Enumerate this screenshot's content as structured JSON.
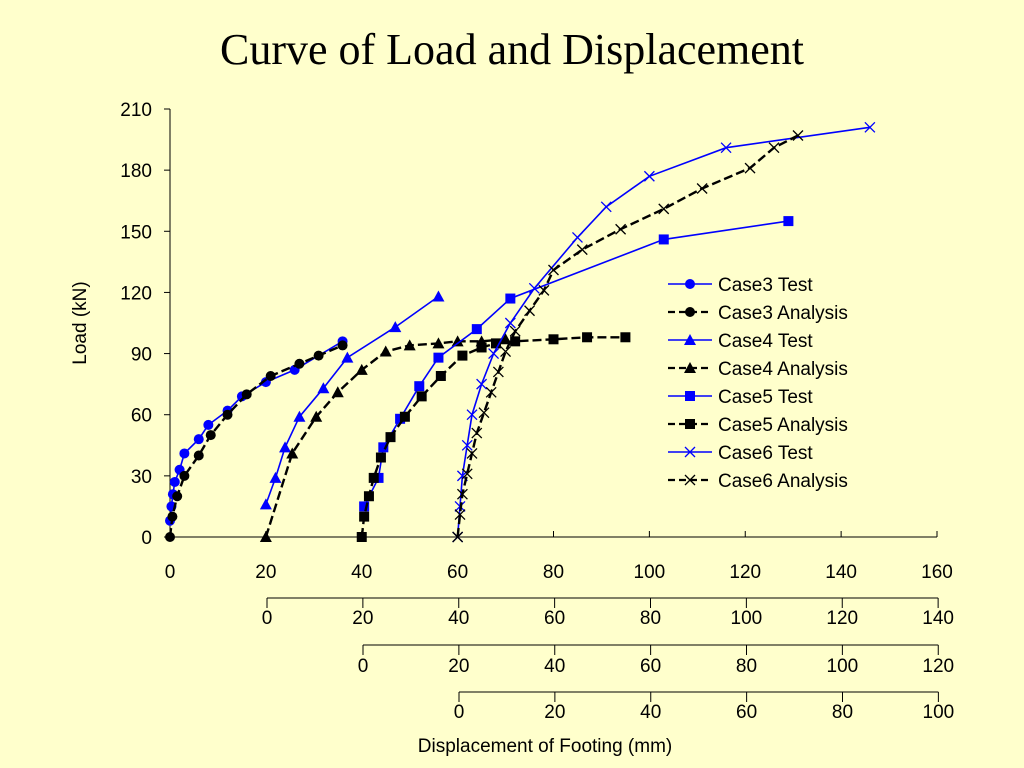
{
  "title": "Curve of Load and Displacement",
  "chart_data": {
    "type": "line",
    "title": "Curve of Load and Displacement",
    "ylabel": "Load (kN)",
    "xlabel": "Displacement of Footing (mm)",
    "ylim": [
      0,
      210
    ],
    "yticks": [
      0,
      30,
      60,
      90,
      120,
      150,
      180,
      210
    ],
    "xlim": [
      0,
      160
    ],
    "x_axes": [
      {
        "ticks": [
          0,
          20,
          40,
          60,
          80,
          100,
          120,
          140,
          160
        ]
      },
      {
        "ticks": [
          0,
          20,
          40,
          60,
          80,
          100,
          120,
          140
        ]
      },
      {
        "ticks": [
          0,
          20,
          40,
          60,
          80,
          100,
          120
        ]
      },
      {
        "ticks": [
          0,
          20,
          40,
          60,
          80,
          100
        ]
      }
    ],
    "grid": false,
    "legend_position": "right",
    "series": [
      {
        "name": "Case3 Test",
        "color": "#0000FF",
        "dash": false,
        "marker": "circle",
        "points": [
          [
            0,
            8
          ],
          [
            0.3,
            15
          ],
          [
            0.6,
            21
          ],
          [
            1,
            27
          ],
          [
            2,
            33
          ],
          [
            3,
            41
          ],
          [
            6,
            48
          ],
          [
            8,
            55
          ],
          [
            12,
            62
          ],
          [
            15,
            69
          ],
          [
            20,
            76
          ],
          [
            26,
            82
          ],
          [
            36,
            96
          ]
        ]
      },
      {
        "name": "Case3 Analysis",
        "color": "#000000",
        "dash": true,
        "marker": "circle",
        "points": [
          [
            0,
            0
          ],
          [
            0.5,
            10
          ],
          [
            1.5,
            20
          ],
          [
            3,
            30
          ],
          [
            6,
            40
          ],
          [
            8.5,
            50
          ],
          [
            12,
            60
          ],
          [
            16,
            70
          ],
          [
            21,
            79
          ],
          [
            27,
            85
          ],
          [
            31,
            89
          ],
          [
            36,
            94
          ]
        ]
      },
      {
        "name": "Case4 Test",
        "color": "#0000FF",
        "dash": false,
        "marker": "triangle",
        "points": [
          [
            20,
            16
          ],
          [
            22,
            29
          ],
          [
            24,
            44
          ],
          [
            27,
            59
          ],
          [
            32,
            73
          ],
          [
            37,
            88
          ],
          [
            47,
            103
          ],
          [
            56,
            118
          ]
        ]
      },
      {
        "name": "Case4 Analysis",
        "color": "#000000",
        "dash": true,
        "marker": "triangle",
        "points": [
          [
            20,
            0
          ],
          [
            25.5,
            41
          ],
          [
            30.5,
            59
          ],
          [
            35,
            71
          ],
          [
            40,
            82
          ],
          [
            45,
            91
          ],
          [
            50,
            94
          ],
          [
            56,
            95
          ],
          [
            60,
            96
          ],
          [
            65,
            96
          ],
          [
            70,
            97
          ]
        ]
      },
      {
        "name": "Case5 Test",
        "color": "#0000FF",
        "dash": false,
        "marker": "square",
        "points": [
          [
            40.5,
            15
          ],
          [
            43.5,
            29
          ],
          [
            44.5,
            44
          ],
          [
            48,
            58
          ],
          [
            52,
            74
          ],
          [
            56,
            88
          ],
          [
            64,
            102
          ],
          [
            71,
            117
          ],
          [
            103,
            146
          ],
          [
            129,
            155
          ]
        ]
      },
      {
        "name": "Case5 Analysis",
        "color": "#000000",
        "dash": true,
        "marker": "square",
        "points": [
          [
            40,
            0
          ],
          [
            40.5,
            10
          ],
          [
            41.5,
            20
          ],
          [
            42.5,
            29
          ],
          [
            44,
            39
          ],
          [
            46,
            49
          ],
          [
            49,
            59
          ],
          [
            52.5,
            69
          ],
          [
            56.5,
            79
          ],
          [
            61,
            89
          ],
          [
            65,
            93
          ],
          [
            68,
            95
          ],
          [
            72,
            96
          ],
          [
            80,
            97
          ],
          [
            87,
            98
          ],
          [
            95,
            98
          ]
        ]
      },
      {
        "name": "Case6 Test",
        "color": "#0000FF",
        "dash": false,
        "marker": "x",
        "points": [
          [
            60,
            0
          ],
          [
            60.5,
            15
          ],
          [
            61,
            30
          ],
          [
            62,
            45
          ],
          [
            63,
            60
          ],
          [
            65,
            75
          ],
          [
            67.5,
            90
          ],
          [
            71,
            105
          ],
          [
            76,
            122
          ],
          [
            85,
            147
          ],
          [
            91,
            162
          ],
          [
            100,
            177
          ],
          [
            116,
            191
          ],
          [
            146,
            201
          ]
        ]
      },
      {
        "name": "Case6 Analysis",
        "color": "#000000",
        "dash": true,
        "marker": "x",
        "points": [
          [
            60,
            0
          ],
          [
            60.5,
            11
          ],
          [
            61,
            21
          ],
          [
            62,
            31
          ],
          [
            63,
            41
          ],
          [
            64,
            51
          ],
          [
            65.5,
            61
          ],
          [
            67,
            71
          ],
          [
            68.5,
            81
          ],
          [
            70,
            91
          ],
          [
            72,
            101
          ],
          [
            75,
            111
          ],
          [
            78,
            121
          ],
          [
            80,
            131
          ],
          [
            86,
            141
          ],
          [
            94,
            151
          ],
          [
            103,
            161
          ],
          [
            111,
            171
          ],
          [
            121,
            181
          ],
          [
            126,
            191
          ],
          [
            131,
            197
          ]
        ]
      }
    ]
  }
}
